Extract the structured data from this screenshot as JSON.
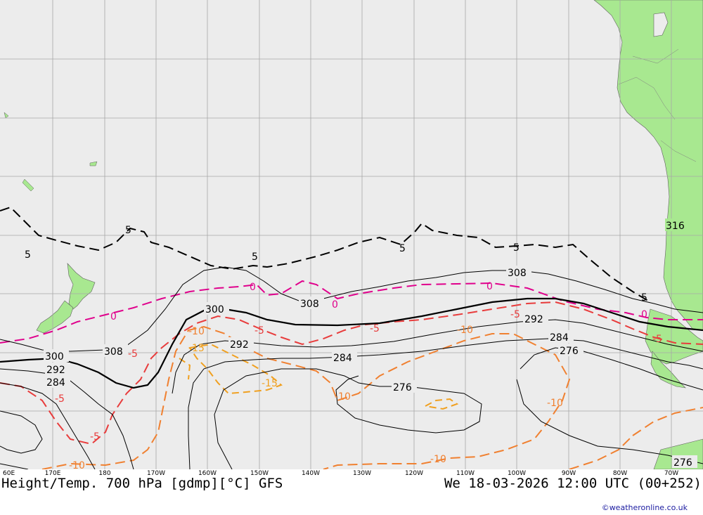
{
  "map": {
    "title": "Height/Temp. 700 hPa [gdmp][°C] GFS",
    "valid_time": "We 18-03-2026 12:00 UTC (00+252)",
    "credit": "©weatheronline.co.uk",
    "longitude_labels": [
      "60E",
      "170E",
      "180",
      "170W",
      "160W",
      "150W",
      "140W",
      "130W",
      "120W",
      "110W",
      "100W",
      "90W",
      "80W",
      "70W"
    ],
    "height_contour_labels": [
      "316",
      "308",
      "300",
      "292",
      "284",
      "276"
    ],
    "temperature_contour_labels": [
      "5",
      "0",
      "-5",
      "-10",
      "-15"
    ],
    "colors": {
      "ocean": "#ececec",
      "land": "#a8e890",
      "height_contours": "#000000",
      "temp_5": "#000000",
      "temp_0": "#e0008c",
      "temp_minus5": "#e83c3c",
      "temp_minus10": "#f08030",
      "temp_minus15": "#f0a020",
      "grid": "#a0a0a0"
    }
  }
}
